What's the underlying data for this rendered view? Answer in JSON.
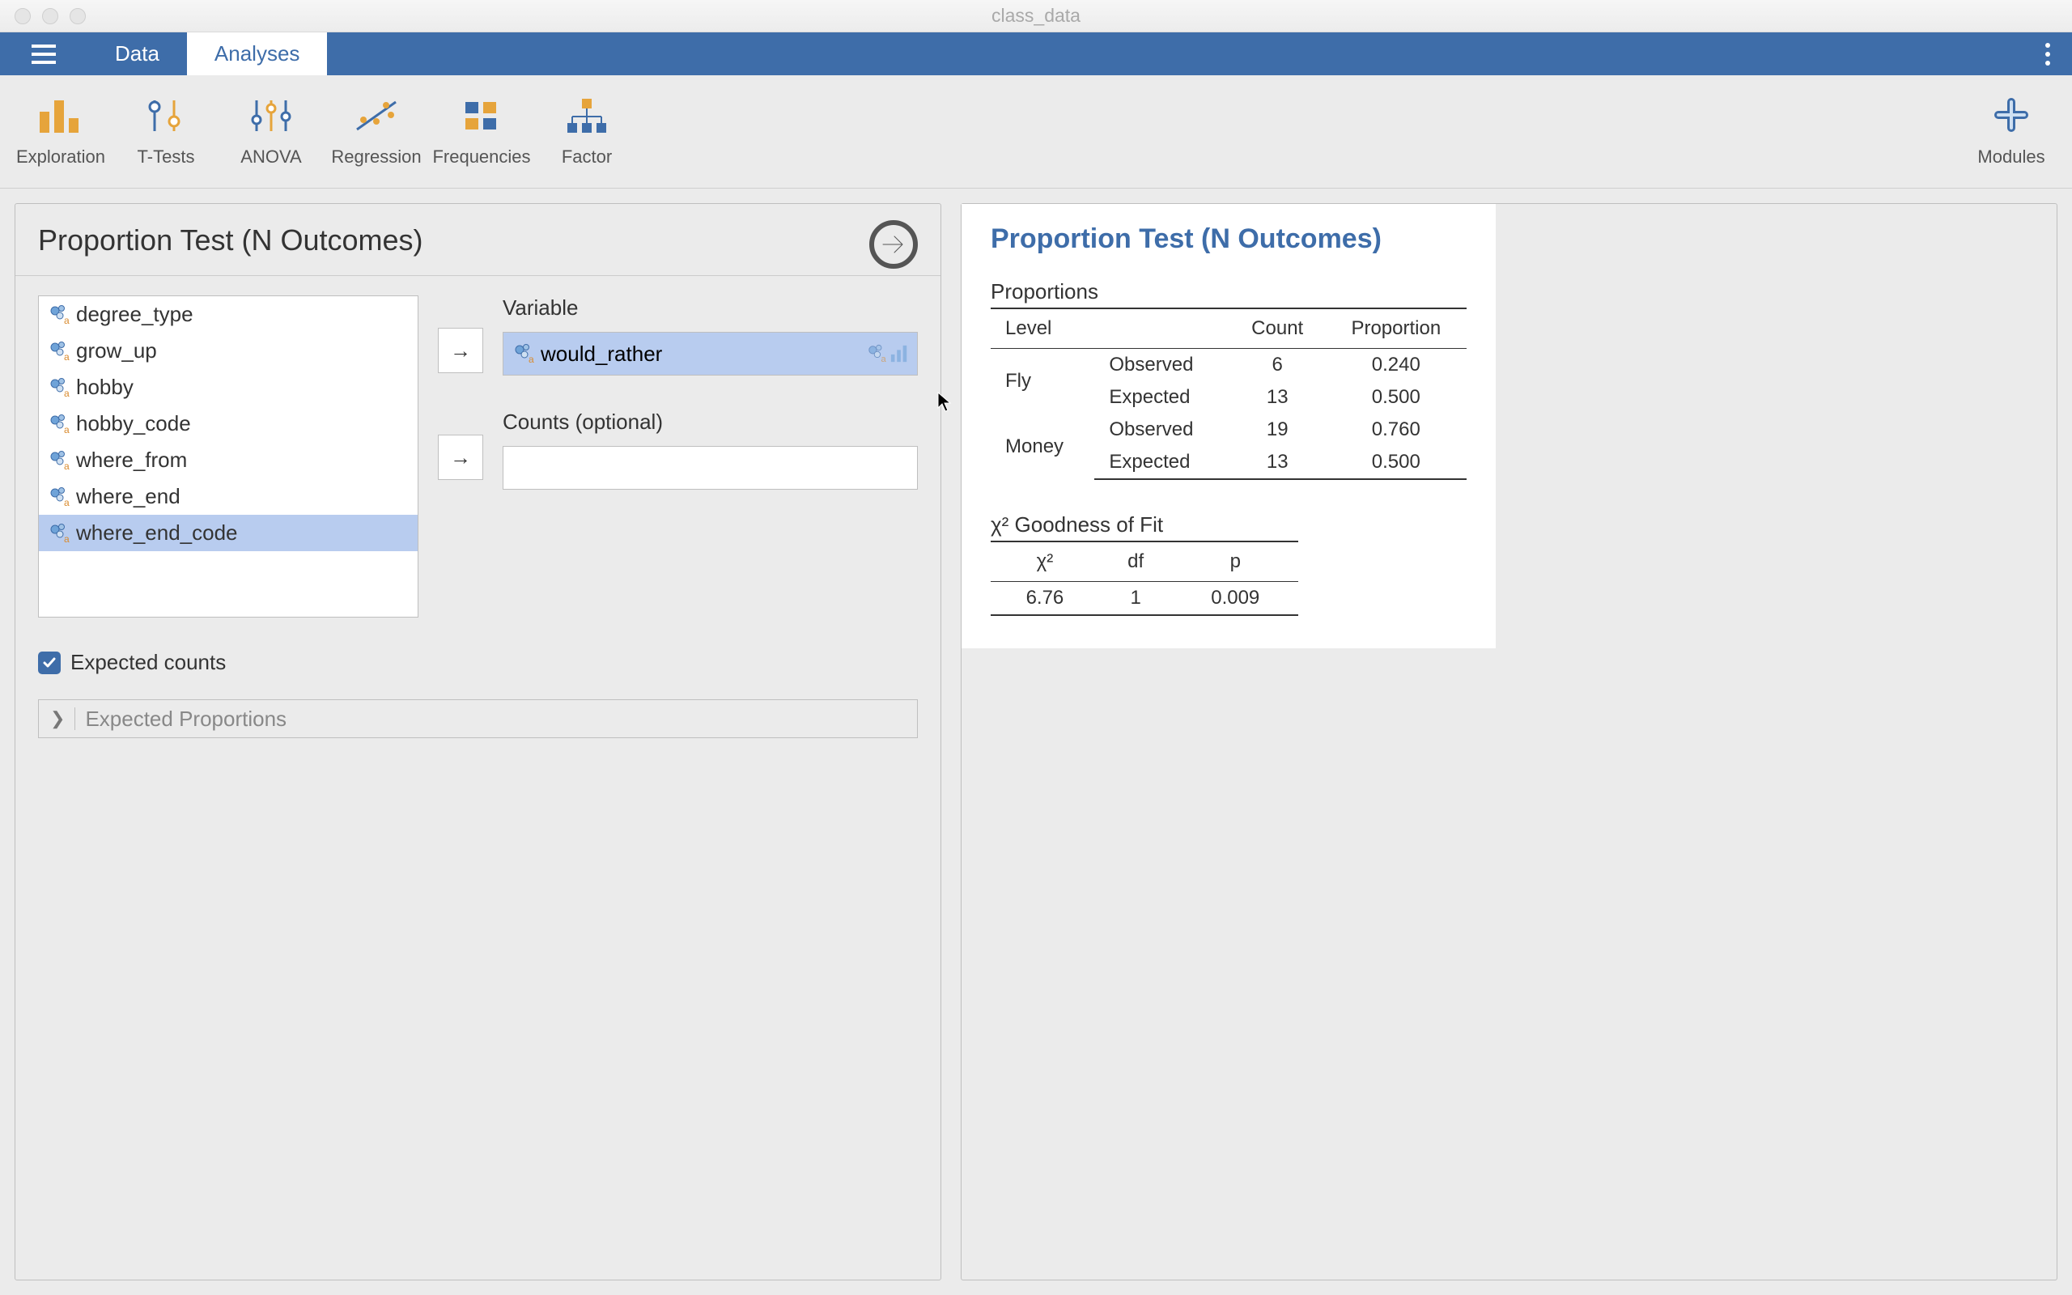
{
  "window": {
    "title": "class_data"
  },
  "tabs": {
    "data": "Data",
    "analyses": "Analyses",
    "active": "analyses"
  },
  "toolbar": {
    "items": [
      {
        "key": "exploration",
        "label": "Exploration"
      },
      {
        "key": "ttests",
        "label": "T-Tests"
      },
      {
        "key": "anova",
        "label": "ANOVA"
      },
      {
        "key": "regression",
        "label": "Regression"
      },
      {
        "key": "frequencies",
        "label": "Frequencies"
      },
      {
        "key": "factor",
        "label": "Factor"
      }
    ],
    "modules": "Modules"
  },
  "config": {
    "title": "Proportion Test (N Outcomes)",
    "source_vars": [
      "degree_type",
      "grow_up",
      "hobby",
      "hobby_code",
      "where_from",
      "where_end",
      "where_end_code"
    ],
    "selected_source_index": 6,
    "variable_label": "Variable",
    "variable_value": "would_rather",
    "counts_label": "Counts (optional)",
    "counts_value": "",
    "expected_counts_label": "Expected counts",
    "expected_counts_checked": true,
    "collapsible_label": "Expected Proportions"
  },
  "results": {
    "title": "Proportion Test (N Outcomes)",
    "proportions": {
      "label": "Proportions",
      "headers": {
        "level": "Level",
        "count": "Count",
        "proportion": "Proportion"
      },
      "row_labels": {
        "observed": "Observed",
        "expected": "Expected"
      },
      "levels": [
        {
          "name": "Fly",
          "observed_count": "6",
          "observed_prop": "0.240",
          "expected_count": "13",
          "expected_prop": "0.500"
        },
        {
          "name": "Money",
          "observed_count": "19",
          "observed_prop": "0.760",
          "expected_count": "13",
          "expected_prop": "0.500"
        }
      ]
    },
    "gof": {
      "label": "χ² Goodness of Fit",
      "headers": {
        "chi2": "χ²",
        "df": "df",
        "p": "p"
      },
      "row": {
        "chi2": "6.76",
        "df": "1",
        "p": "0.009"
      }
    }
  },
  "colors": {
    "brand": "#3e6da9",
    "orange": "#e6a43b",
    "toolbar_bg": "#ebebeb",
    "border": "#bfbfbf",
    "text": "#333333",
    "selected": "#b8ccef"
  }
}
